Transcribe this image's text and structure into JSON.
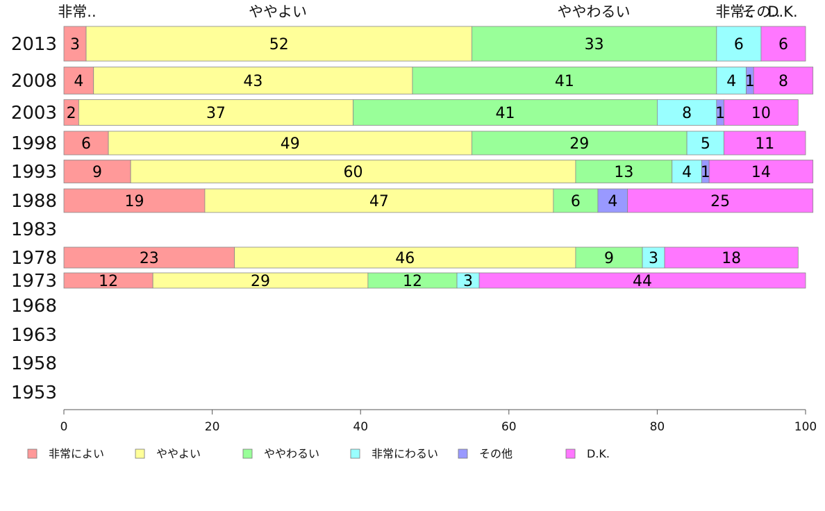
{
  "chart_data": {
    "type": "bar",
    "orientation": "horizontal-stacked",
    "categories": [
      "2013",
      "2008",
      "2003",
      "1998",
      "1993",
      "1988",
      "1983",
      "1978",
      "1973",
      "1968",
      "1963",
      "1958",
      "1953"
    ],
    "series": [
      {
        "name": "非常によい",
        "color": "#ff9999",
        "values": [
          3,
          4,
          2,
          6,
          9,
          19,
          null,
          23,
          12,
          null,
          null,
          null,
          null
        ]
      },
      {
        "name": "ややよい",
        "color": "#ffff99",
        "values": [
          52,
          43,
          37,
          49,
          60,
          47,
          null,
          46,
          29,
          null,
          null,
          null,
          null
        ]
      },
      {
        "name": "ややわるい",
        "color": "#99ff99",
        "values": [
          33,
          41,
          41,
          29,
          13,
          6,
          null,
          9,
          12,
          null,
          null,
          null,
          null
        ]
      },
      {
        "name": "非常にわるい",
        "color": "#99ffff",
        "values": [
          6,
          4,
          8,
          5,
          4,
          null,
          null,
          3,
          3,
          null,
          null,
          null,
          null
        ]
      },
      {
        "name": "その他",
        "color": "#9999ff",
        "values": [
          null,
          1,
          1,
          null,
          1,
          4,
          null,
          null,
          null,
          null,
          null,
          null,
          null
        ]
      },
      {
        "name": "D.K.",
        "color": "#ff77ff",
        "values": [
          6,
          8,
          10,
          11,
          14,
          25,
          null,
          18,
          44,
          null,
          null,
          null,
          null
        ]
      }
    ],
    "top_labels": [
      "非常..",
      "ややよい",
      "ややわるい",
      "非常..",
      "その..",
      "D.K."
    ],
    "xlim": [
      0,
      100
    ],
    "xticks": [
      0,
      20,
      40,
      60,
      80,
      100
    ],
    "legend": "bottom",
    "grid": false
  }
}
